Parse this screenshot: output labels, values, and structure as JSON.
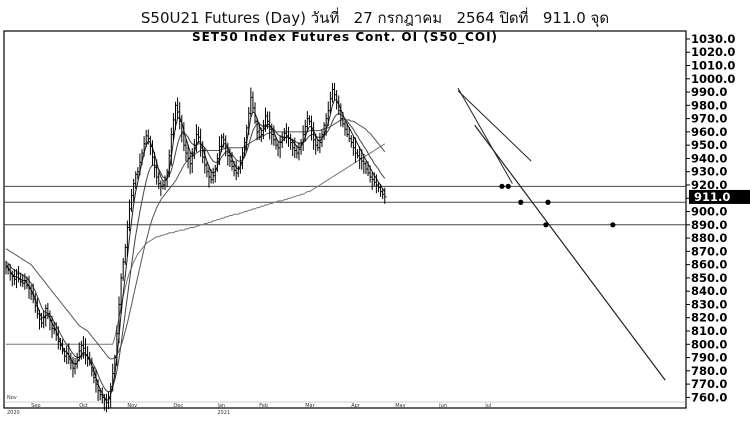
{
  "headline": "S50U21 Futures (Day) วันที่   27 กรกฎาคม   2564 ปิดที่   911.0 จุด",
  "chart_data": {
    "type": "line",
    "title": "SET50  Index  Futures  Cont.  OI  (S50_COI)",
    "xlabel": "",
    "ylabel": "",
    "ylim": [
      752,
      1036
    ],
    "grid": false,
    "legend": "none",
    "y_ticks": [
      "1030.0",
      "1020.0",
      "1010.0",
      "1000.0",
      "990.0",
      "980.0",
      "970.0",
      "960.0",
      "950.0",
      "940.0",
      "930.0",
      "920.0",
      "910.0",
      "900.0",
      "890.0",
      "880.0",
      "870.0",
      "860.0",
      "850.0",
      "840.0",
      "830.0",
      "820.0",
      "810.0",
      "800.0",
      "790.0",
      "780.0",
      "770.0",
      "760.0"
    ],
    "y_tick_values": [
      1030,
      1020,
      1010,
      1000,
      990,
      980,
      970,
      960,
      950,
      940,
      930,
      920,
      910,
      900,
      890,
      880,
      870,
      860,
      850,
      840,
      830,
      820,
      810,
      800,
      790,
      780,
      770,
      760
    ],
    "x_labels": [
      "Sep",
      "Oct",
      "Nov",
      "Dec",
      "Jan",
      "Feb",
      "Mar",
      "Apr",
      "May",
      "Jun",
      "Jul"
    ],
    "x_label_index": [
      12,
      35,
      58,
      80,
      101,
      121,
      143,
      165,
      186,
      207,
      229
    ],
    "bottom_left_labels": [
      "Nov",
      "2020"
    ],
    "bottom_mid_label": "2021",
    "last_price": "911.0",
    "x_max_index": 324,
    "close": [
      858,
      856,
      853,
      851,
      849,
      853,
      849,
      847,
      846,
      848,
      844,
      842,
      838,
      834,
      829,
      823,
      819,
      816,
      820,
      827,
      823,
      818,
      812,
      811,
      807,
      802,
      799,
      795,
      791,
      793,
      789,
      786,
      782,
      785,
      790,
      795,
      799,
      797,
      792,
      789,
      786,
      780,
      775,
      770,
      765,
      762,
      760,
      758,
      756,
      759,
      768,
      778,
      790,
      808,
      830,
      850,
      862,
      873,
      888,
      902,
      912,
      921,
      928,
      930,
      937,
      944,
      951,
      957,
      955,
      949,
      941,
      933,
      926,
      921,
      919,
      920,
      924,
      930,
      942,
      958,
      969,
      980,
      975,
      968,
      960,
      950,
      944,
      940,
      936,
      942,
      950,
      958,
      956,
      948,
      941,
      935,
      930,
      926,
      924,
      927,
      932,
      940,
      949,
      956,
      954,
      948,
      942,
      938,
      934,
      931,
      929,
      932,
      937,
      944,
      952,
      963,
      974,
      986,
      978,
      968,
      960,
      956,
      958,
      965,
      972,
      968,
      962,
      958,
      954,
      950,
      948,
      952,
      956,
      959,
      957,
      955,
      952,
      948,
      946,
      944,
      947,
      952,
      958,
      964,
      970,
      968,
      961,
      954,
      950,
      948,
      952,
      958,
      965,
      970,
      976,
      985,
      992,
      988,
      982,
      976,
      970,
      966,
      962,
      958,
      955,
      952,
      948,
      944,
      942,
      940,
      938,
      936,
      932,
      929,
      926,
      924,
      922,
      920,
      918,
      915,
      913,
      911
    ],
    "ma_short": [
      860,
      858,
      855,
      853,
      851,
      851,
      850,
      849,
      848,
      848,
      846,
      844,
      841,
      838,
      834,
      829,
      824,
      820,
      820,
      822,
      822,
      820,
      816,
      813,
      810,
      806,
      802,
      798,
      795,
      794,
      792,
      789,
      786,
      785,
      786,
      789,
      792,
      794,
      793,
      791,
      788,
      784,
      780,
      775,
      770,
      766,
      763,
      760,
      758,
      758,
      762,
      768,
      777,
      790,
      806,
      823,
      838,
      852,
      866,
      880,
      893,
      905,
      915,
      922,
      930,
      937,
      944,
      950,
      953,
      952,
      948,
      943,
      937,
      931,
      926,
      923,
      923,
      925,
      931,
      941,
      953,
      964,
      970,
      971,
      967,
      961,
      955,
      950,
      945,
      943,
      945,
      950,
      953,
      952,
      948,
      943,
      938,
      934,
      930,
      929,
      930,
      934,
      940,
      947,
      951,
      951,
      948,
      944,
      940,
      936,
      933,
      932,
      934,
      938,
      944,
      952,
      961,
      971,
      975,
      974,
      970,
      965,
      961,
      961,
      964,
      966,
      965,
      963,
      960,
      956,
      953,
      952,
      953,
      955,
      956,
      956,
      955,
      953,
      951,
      949,
      948,
      949,
      952,
      956,
      961,
      964,
      964,
      961,
      957,
      954,
      953,
      955,
      958,
      962,
      967,
      973,
      980,
      984,
      984,
      981,
      977,
      973,
      969,
      966,
      963,
      960,
      957,
      954,
      951,
      948,
      945,
      942,
      939,
      936,
      933,
      930,
      927,
      925,
      922,
      920,
      917,
      915
    ],
    "ma_mid": [
      862,
      861,
      859,
      857,
      856,
      855,
      854,
      853,
      852,
      851,
      850,
      848,
      846,
      843,
      840,
      836,
      832,
      828,
      825,
      824,
      823,
      822,
      820,
      817,
      814,
      811,
      808,
      805,
      802,
      800,
      798,
      795,
      793,
      791,
      790,
      790,
      791,
      792,
      792,
      791,
      789,
      787,
      784,
      781,
      777,
      773,
      770,
      767,
      765,
      764,
      765,
      768,
      773,
      780,
      789,
      800,
      812,
      824,
      836,
      848,
      860,
      871,
      882,
      891,
      900,
      908,
      916,
      923,
      929,
      933,
      935,
      935,
      934,
      932,
      929,
      926,
      925,
      925,
      927,
      931,
      937,
      944,
      951,
      956,
      959,
      959,
      958,
      956,
      953,
      951,
      950,
      950,
      951,
      951,
      950,
      948,
      946,
      943,
      940,
      938,
      937,
      937,
      938,
      941,
      943,
      945,
      945,
      944,
      943,
      941,
      939,
      938,
      938,
      939,
      941,
      945,
      950,
      956,
      961,
      964,
      966,
      966,
      965,
      964,
      964,
      964,
      964,
      963,
      962,
      960,
      958,
      957,
      956,
      956,
      956,
      956,
      955,
      954,
      953,
      952,
      951,
      951,
      952,
      953,
      955,
      957,
      958,
      958,
      957,
      956,
      956,
      956,
      957,
      959,
      961,
      964,
      968,
      971,
      973,
      974,
      973,
      972,
      970,
      968,
      966,
      964,
      962,
      959,
      957,
      954,
      952,
      949,
      947,
      944,
      941,
      939,
      936,
      934,
      932,
      929,
      927,
      925
    ],
    "ma_long": [
      872,
      871,
      870,
      869,
      868,
      867,
      866,
      865,
      864,
      863,
      862,
      861,
      860,
      858,
      856,
      854,
      852,
      850,
      848,
      846,
      844,
      842,
      840,
      838,
      836,
      834,
      832,
      830,
      828,
      826,
      824,
      822,
      820,
      818,
      816,
      814,
      813,
      812,
      811,
      810,
      808,
      806,
      804,
      802,
      800,
      798,
      796,
      794,
      792,
      790,
      789,
      789,
      790,
      792,
      795,
      799,
      804,
      810,
      816,
      823,
      830,
      837,
      844,
      851,
      858,
      865,
      872,
      878,
      884,
      890,
      895,
      899,
      903,
      906,
      909,
      911,
      913,
      915,
      917,
      919,
      921,
      923,
      926,
      929,
      932,
      935,
      937,
      939,
      941,
      942,
      943,
      944,
      945,
      946,
      946,
      946,
      946,
      946,
      946,
      946,
      946,
      946,
      946,
      947,
      947,
      948,
      948,
      948,
      948,
      948,
      948,
      948,
      948,
      948,
      949,
      950,
      951,
      952,
      953,
      954,
      955,
      956,
      957,
      957,
      958,
      959,
      959,
      960,
      960,
      960,
      960,
      960,
      960,
      960,
      960,
      960,
      960,
      960,
      960,
      960,
      960,
      960,
      960,
      960,
      960,
      961,
      961,
      961,
      961,
      961,
      961,
      962,
      962,
      963,
      963,
      964,
      965,
      966,
      967,
      968,
      969,
      969,
      969,
      969,
      969,
      968,
      968,
      967,
      966,
      965,
      964,
      963,
      962,
      960,
      959,
      957,
      955,
      953,
      951,
      949,
      947,
      945
    ],
    "ma_200": [
      800,
      800,
      800,
      800,
      800,
      800,
      800,
      800,
      800,
      800,
      800,
      800,
      800,
      800,
      800,
      800,
      800,
      800,
      800,
      800,
      800,
      800,
      800,
      800,
      800,
      800,
      800,
      800,
      800,
      800,
      800,
      800,
      800,
      800,
      800,
      800,
      800,
      800,
      800,
      800,
      800,
      800,
      800,
      800,
      800,
      800,
      800,
      800,
      800,
      800,
      800,
      800,
      805,
      812,
      820,
      828,
      836,
      843,
      849,
      854,
      858,
      862,
      865,
      868,
      870,
      872,
      874,
      876,
      877,
      878,
      879,
      880,
      881,
      881,
      882,
      882,
      883,
      883,
      884,
      884,
      884,
      885,
      885,
      886,
      886,
      886,
      887,
      887,
      888,
      888,
      888,
      889,
      889,
      890,
      890,
      891,
      891,
      892,
      892,
      893,
      893,
      894,
      894,
      895,
      895,
      896,
      896,
      897,
      897,
      898,
      898,
      898,
      899,
      899,
      900,
      900,
      901,
      901,
      902,
      902,
      903,
      903,
      904,
      904,
      905,
      905,
      906,
      906,
      907,
      907,
      908,
      908,
      908,
      909,
      909,
      910,
      910,
      911,
      911,
      912,
      912,
      913,
      913,
      914,
      915,
      915,
      916,
      917,
      918,
      919,
      920,
      921,
      922,
      923,
      924,
      925,
      926,
      927,
      928,
      929,
      930,
      931,
      932,
      933,
      934,
      935,
      936,
      937,
      938,
      939,
      940,
      941,
      942,
      943,
      944,
      945,
      946,
      947,
      948,
      949,
      950,
      951
    ],
    "levels": [
      919,
      907,
      890
    ],
    "downtrend_line": [
      [
        216,
        993
      ],
      [
        242,
        921
      ]
    ],
    "channel_line": [
      [
        216,
        991
      ],
      [
        251,
        938
      ]
    ],
    "projection_line": [
      [
        224,
        965
      ],
      [
        315,
        773
      ]
    ],
    "level_markers": [
      [
        237,
        919
      ],
      [
        240,
        919
      ],
      [
        246,
        907
      ],
      [
        259,
        907
      ],
      [
        258,
        890
      ],
      [
        290,
        890
      ]
    ]
  }
}
